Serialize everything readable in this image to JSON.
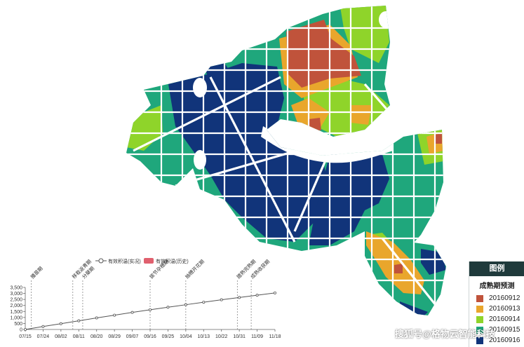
{
  "colors": {
    "stage1": "#c0533b",
    "stage2": "#e9a62c",
    "stage3": "#8fd42a",
    "stage4": "#1fa77c",
    "stage5": "#11347a",
    "road": "#ffffff",
    "river": "#ffffff",
    "chart_line": "#555555",
    "phase_line": "#777777"
  },
  "legend": {
    "title": "图例",
    "subtitle": "成熟期预测",
    "items": [
      {
        "label": "20160912",
        "color": "#c0533b"
      },
      {
        "label": "20160913",
        "color": "#e9a62c"
      },
      {
        "label": "20160914",
        "color": "#8fd42a"
      },
      {
        "label": "20160915",
        "color": "#1fa77c"
      },
      {
        "label": "20160916",
        "color": "#11347a"
      }
    ]
  },
  "watermark": "搜狐号@格物云智能科技",
  "chart_data": {
    "type": "line",
    "series_labels": [
      "有效积温(实况)",
      "有效积温(历史)"
    ],
    "x_ticks": [
      "07/15",
      "07/24",
      "08/02",
      "08/11",
      "08/20",
      "08/29",
      "09/07",
      "09/16",
      "09/25",
      "10/04",
      "10/13",
      "10/22",
      "10/31",
      "11/09",
      "11/18"
    ],
    "y_ticks": [
      0,
      500,
      1000,
      1500,
      2000,
      2500,
      3000,
      3500
    ],
    "ylim": [
      0,
      3500
    ],
    "series": [
      {
        "name": "有效积温(实况)",
        "x": [
          "07/15",
          "07/24",
          "08/02",
          "08/11",
          "08/20",
          "08/29",
          "09/07",
          "09/16",
          "09/25",
          "10/04",
          "10/13",
          "10/22",
          "10/31",
          "11/09",
          "11/18"
        ],
        "values": [
          0,
          250,
          480,
          720,
          960,
          1190,
          1420,
          1640,
          1850,
          2060,
          2270,
          2470,
          2660,
          2850,
          3040
        ]
      }
    ],
    "phases": [
      {
        "label": "播苗期",
        "date": "07/18"
      },
      {
        "label": "移栽返青期",
        "date": "08/08"
      },
      {
        "label": "分蘖期",
        "date": "08/13"
      },
      {
        "label": "拔节孕穗期",
        "date": "09/16"
      },
      {
        "label": "抽穗开花期",
        "date": "10/04"
      },
      {
        "label": "腊熟完熟期",
        "date": "10/30"
      },
      {
        "label": "成熟收获期",
        "date": "11/06"
      }
    ]
  }
}
